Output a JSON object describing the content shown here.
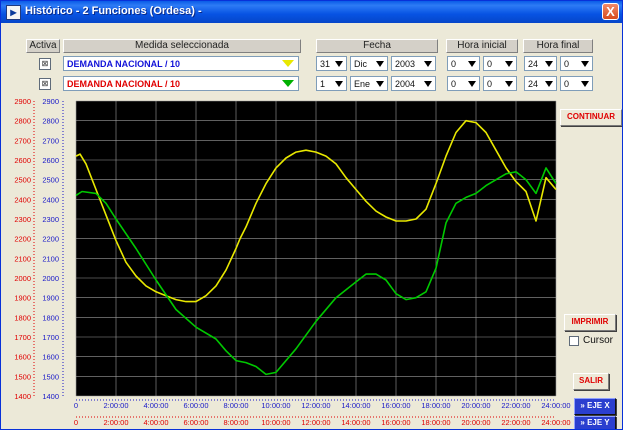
{
  "window": {
    "title": "Histórico - 2 Funciones (Ordesa) -",
    "close": "X"
  },
  "headers": {
    "active": "Activa",
    "measure": "Medida seleccionada",
    "date": "Fecha",
    "start_time": "Hora inicial",
    "end_time": "Hora final"
  },
  "rows": [
    {
      "active": true,
      "measure": "DEMANDA NACIONAL / 10",
      "measure_color": "#1212d8",
      "arrow_color": "#e8e800",
      "day": "31",
      "month": "Dic",
      "year": "2003",
      "start_h": "0",
      "start_m": "0",
      "end_h": "24",
      "end_m": "0"
    },
    {
      "active": true,
      "measure": "DEMANDA NACIONAL / 10",
      "measure_color": "#e00000",
      "arrow_color": "#00b000",
      "day": "1",
      "month": "Ene",
      "year": "2004",
      "start_h": "0",
      "start_m": "0",
      "end_h": "24",
      "end_m": "0"
    }
  ],
  "buttons": {
    "continue": "CONTINUAR",
    "print": "IMPRIMIR",
    "cursor": "Cursor",
    "exit": "SALIR",
    "axis_x": "» EJE X",
    "axis_y": "» EJE Y"
  },
  "colors": {
    "plot_bg": "#000000",
    "series1": "#e8e800",
    "series2": "#00c800",
    "axis_blue": "#1818c8",
    "axis_red": "#e00000"
  },
  "chart_data": {
    "type": "line",
    "ylim": [
      1400,
      2900
    ],
    "xlim": [
      0,
      24
    ],
    "y_ticks": [
      1400,
      1500,
      1600,
      1700,
      1800,
      1900,
      2000,
      2100,
      2200,
      2300,
      2400,
      2500,
      2600,
      2700,
      2800,
      2900
    ],
    "x_ticks": [
      "0",
      "2:00:00",
      "4:00:00",
      "6:00:00",
      "8:00:00",
      "10:00:00",
      "12:00:00",
      "14:00:00",
      "16:00:00",
      "18:00:00",
      "20:00:00",
      "22:00:00",
      "24:00:00"
    ],
    "grid": true,
    "series": [
      {
        "color": "#e8e800",
        "x": [
          0,
          0.2,
          0.5,
          1,
          1.5,
          2,
          2.5,
          3,
          3.5,
          4,
          4.5,
          5,
          5.5,
          6,
          6.5,
          7,
          7.5,
          8,
          8.2,
          8.5,
          9,
          9.5,
          10,
          10.5,
          11,
          11.5,
          12,
          12.5,
          13,
          13.5,
          14,
          14.5,
          15,
          15.5,
          16,
          16.5,
          17,
          17.5,
          18,
          18.5,
          19,
          19.5,
          20,
          20.5,
          21,
          21.5,
          22,
          22.5,
          23,
          23.5,
          24
        ],
        "y": [
          2620,
          2630,
          2580,
          2450,
          2320,
          2190,
          2080,
          2010,
          1960,
          1930,
          1910,
          1890,
          1880,
          1880,
          1910,
          1960,
          2040,
          2150,
          2200,
          2260,
          2380,
          2480,
          2560,
          2610,
          2640,
          2650,
          2640,
          2620,
          2580,
          2510,
          2450,
          2390,
          2340,
          2310,
          2290,
          2290,
          2300,
          2350,
          2480,
          2620,
          2740,
          2800,
          2790,
          2740,
          2650,
          2560,
          2490,
          2440,
          2290,
          2510,
          2450
        ]
      },
      {
        "color": "#00c800",
        "x": [
          0,
          0.3,
          1,
          1.5,
          2,
          3,
          4,
          5,
          6,
          7,
          7.5,
          8,
          8.5,
          9,
          9.5,
          10,
          11,
          12,
          13,
          14,
          14.5,
          15,
          15.5,
          16,
          16.5,
          17,
          17.5,
          18,
          18.5,
          19,
          19.5,
          20,
          20.5,
          21,
          21.5,
          22,
          22.5,
          23,
          23.5,
          24
        ],
        "y": [
          2420,
          2440,
          2430,
          2380,
          2300,
          2150,
          1990,
          1840,
          1750,
          1690,
          1630,
          1580,
          1570,
          1550,
          1510,
          1520,
          1640,
          1780,
          1900,
          1980,
          2020,
          2020,
          1990,
          1920,
          1890,
          1900,
          1930,
          2050,
          2280,
          2380,
          2410,
          2430,
          2470,
          2500,
          2530,
          2540,
          2500,
          2430,
          2560,
          2480
        ]
      }
    ]
  }
}
